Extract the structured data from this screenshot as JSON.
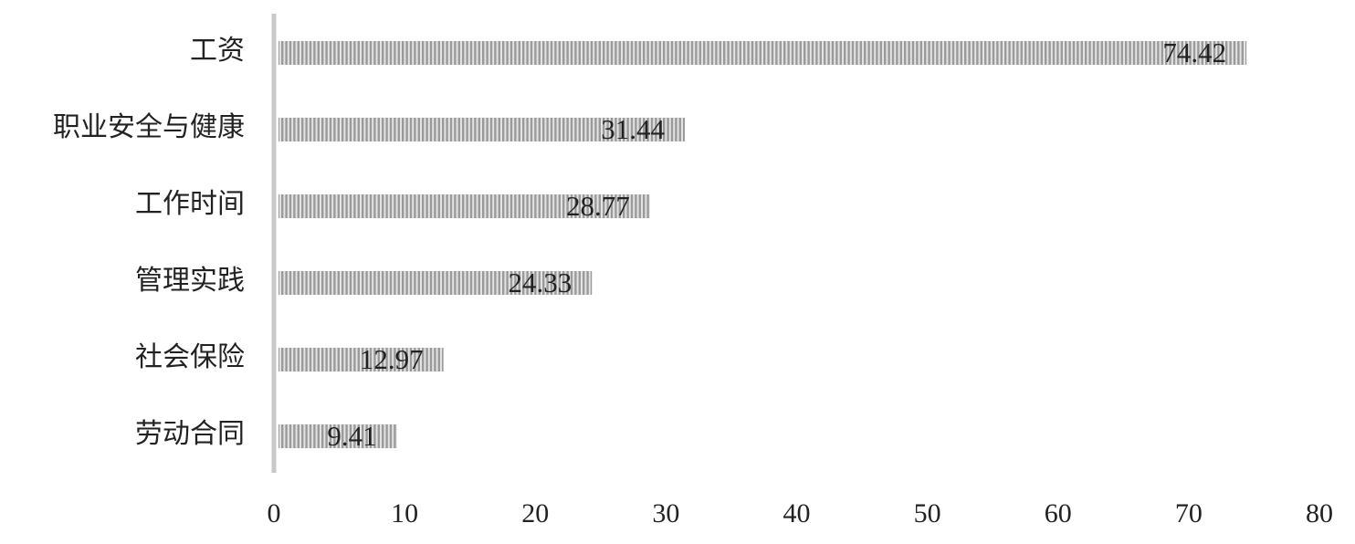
{
  "chart_data": {
    "type": "hbar",
    "categories": [
      "工资",
      "职业安全与健康",
      "工作时间",
      "管理实践",
      "社会保险",
      "劳动合同"
    ],
    "values": [
      74.42,
      31.44,
      28.77,
      24.33,
      12.97,
      9.41
    ],
    "color": "#9a9a9a",
    "xlim": [
      0,
      80
    ],
    "xticks": [
      0,
      10,
      20,
      30,
      40,
      50,
      60,
      70,
      80
    ]
  }
}
